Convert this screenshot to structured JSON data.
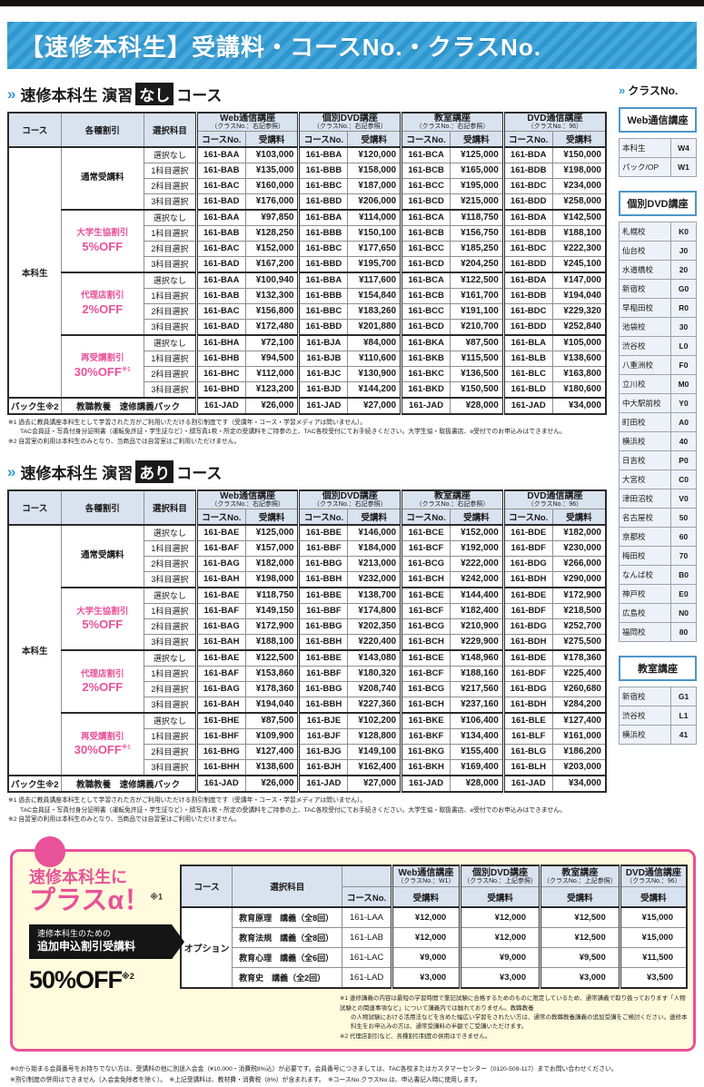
{
  "glyphs": {
    "chevron": "»"
  },
  "colors": {
    "accent_blue": "#2E9BD6",
    "brand_pink": "#E85298",
    "header_bg": "#D9E2EF",
    "plus_bg": "#FFFBDC",
    "ribbon_black": "#151515"
  },
  "page": {
    "title": "【速修本科生】受講料・コースNo.・クラスNo."
  },
  "shared": {
    "col_course": "コース",
    "col_discount": "各種割引",
    "col_subject": "選択科目",
    "col_course_no": "コースNo.",
    "col_fee": "受講料",
    "course_label": "本科生",
    "pack_label": "パック生※2",
    "pack_item": "教職教養　速修講義パック",
    "subjects": [
      "選択なし",
      "1科目選択",
      "2科目選択",
      "3科目選択"
    ],
    "groups": [
      {
        "name": "Web通信講座",
        "sub": "（クラスNo.：右記参照）"
      },
      {
        "name": "個別DVD講座",
        "sub": "（クラスNo.：右記参照）"
      },
      {
        "name": "教室講座",
        "sub": "（クラスNo.：右記参照）"
      },
      {
        "name": "DVD通信講座",
        "sub": "（クラスNo.：96）"
      }
    ],
    "footnotes": [
      "※1 過去に教員講座本科生として学習された方がご利用いただける割引制度です（受講年・コース・学習メディアは問いません）。",
      "TAC会員証・写真付身分証明書（運転免許証・学生証など）・顔写真1枚・所定の受講料をご持参の上、TAC各校受付にてお手続きください。大学生協・取扱書店、e受付でのお申込みはできません。",
      "※2 自習室の利用は本科生のみとなり、当商品では自習室はご利用いただけません。"
    ]
  },
  "tables": [
    {
      "id": "nashi",
      "heading": {
        "pre": "速修本科生 演習",
        "badge": "なし",
        "post": "コース"
      },
      "discounts": [
        {
          "label1": "通常受講料",
          "label2": "",
          "sup": "",
          "pink": false,
          "rows": [
            [
              [
                "161-BAA",
                "¥103,000"
              ],
              [
                "161-BBA",
                "¥120,000"
              ],
              [
                "161-BCA",
                "¥125,000"
              ],
              [
                "161-BDA",
                "¥150,000"
              ]
            ],
            [
              [
                "161-BAB",
                "¥135,000"
              ],
              [
                "161-BBB",
                "¥158,000"
              ],
              [
                "161-BCB",
                "¥165,000"
              ],
              [
                "161-BDB",
                "¥198,000"
              ]
            ],
            [
              [
                "161-BAC",
                "¥160,000"
              ],
              [
                "161-BBC",
                "¥187,000"
              ],
              [
                "161-BCC",
                "¥195,000"
              ],
              [
                "161-BDC",
                "¥234,000"
              ]
            ],
            [
              [
                "161-BAD",
                "¥176,000"
              ],
              [
                "161-BBD",
                "¥206,000"
              ],
              [
                "161-BCD",
                "¥215,000"
              ],
              [
                "161-BDD",
                "¥258,000"
              ]
            ]
          ]
        },
        {
          "label1": "大学生協割引",
          "label2": "5%OFF",
          "sup": "",
          "pink": true,
          "rows": [
            [
              [
                "161-BAA",
                "¥97,850"
              ],
              [
                "161-BBA",
                "¥114,000"
              ],
              [
                "161-BCA",
                "¥118,750"
              ],
              [
                "161-BDA",
                "¥142,500"
              ]
            ],
            [
              [
                "161-BAB",
                "¥128,250"
              ],
              [
                "161-BBB",
                "¥150,100"
              ],
              [
                "161-BCB",
                "¥156,750"
              ],
              [
                "161-BDB",
                "¥188,100"
              ]
            ],
            [
              [
                "161-BAC",
                "¥152,000"
              ],
              [
                "161-BBC",
                "¥177,650"
              ],
              [
                "161-BCC",
                "¥185,250"
              ],
              [
                "161-BDC",
                "¥222,300"
              ]
            ],
            [
              [
                "161-BAD",
                "¥167,200"
              ],
              [
                "161-BBD",
                "¥195,700"
              ],
              [
                "161-BCD",
                "¥204,250"
              ],
              [
                "161-BDD",
                "¥245,100"
              ]
            ]
          ]
        },
        {
          "label1": "代理店割引",
          "label2": "2%OFF",
          "sup": "",
          "pink": true,
          "rows": [
            [
              [
                "161-BAA",
                "¥100,940"
              ],
              [
                "161-BBA",
                "¥117,600"
              ],
              [
                "161-BCA",
                "¥122,500"
              ],
              [
                "161-BDA",
                "¥147,000"
              ]
            ],
            [
              [
                "161-BAB",
                "¥132,300"
              ],
              [
                "161-BBB",
                "¥154,840"
              ],
              [
                "161-BCB",
                "¥161,700"
              ],
              [
                "161-BDB",
                "¥194,040"
              ]
            ],
            [
              [
                "161-BAC",
                "¥156,800"
              ],
              [
                "161-BBC",
                "¥183,260"
              ],
              [
                "161-BCC",
                "¥191,100"
              ],
              [
                "161-BDC",
                "¥229,320"
              ]
            ],
            [
              [
                "161-BAD",
                "¥172,480"
              ],
              [
                "161-BBD",
                "¥201,880"
              ],
              [
                "161-BCD",
                "¥210,700"
              ],
              [
                "161-BDD",
                "¥252,840"
              ]
            ]
          ]
        },
        {
          "label1": "再受講割引",
          "label2": "30%OFF",
          "sup": "※1",
          "pink": true,
          "rows": [
            [
              [
                "161-BHA",
                "¥72,100"
              ],
              [
                "161-BJA",
                "¥84,000"
              ],
              [
                "161-BKA",
                "¥87,500"
              ],
              [
                "161-BLA",
                "¥105,000"
              ]
            ],
            [
              [
                "161-BHB",
                "¥94,500"
              ],
              [
                "161-BJB",
                "¥110,600"
              ],
              [
                "161-BKB",
                "¥115,500"
              ],
              [
                "161-BLB",
                "¥138,600"
              ]
            ],
            [
              [
                "161-BHC",
                "¥112,000"
              ],
              [
                "161-BJC",
                "¥130,900"
              ],
              [
                "161-BKC",
                "¥136,500"
              ],
              [
                "161-BLC",
                "¥163,800"
              ]
            ],
            [
              [
                "161-BHD",
                "¥123,200"
              ],
              [
                "161-BJD",
                "¥144,200"
              ],
              [
                "161-BKD",
                "¥150,500"
              ],
              [
                "161-BLD",
                "¥180,600"
              ]
            ]
          ]
        }
      ],
      "pack": [
        [
          "161-JAD",
          "¥26,000"
        ],
        [
          "161-JAD",
          "¥27,000"
        ],
        [
          "161-JAD",
          "¥28,000"
        ],
        [
          "161-JAD",
          "¥34,000"
        ]
      ]
    },
    {
      "id": "ari",
      "heading": {
        "pre": "速修本科生 演習",
        "badge": "あり",
        "post": "コース"
      },
      "discounts": [
        {
          "label1": "通常受講料",
          "label2": "",
          "sup": "",
          "pink": false,
          "rows": [
            [
              [
                "161-BAE",
                "¥125,000"
              ],
              [
                "161-BBE",
                "¥146,000"
              ],
              [
                "161-BCE",
                "¥152,000"
              ],
              [
                "161-BDE",
                "¥182,000"
              ]
            ],
            [
              [
                "161-BAF",
                "¥157,000"
              ],
              [
                "161-BBF",
                "¥184,000"
              ],
              [
                "161-BCF",
                "¥192,000"
              ],
              [
                "161-BDF",
                "¥230,000"
              ]
            ],
            [
              [
                "161-BAG",
                "¥182,000"
              ],
              [
                "161-BBG",
                "¥213,000"
              ],
              [
                "161-BCG",
                "¥222,000"
              ],
              [
                "161-BDG",
                "¥266,000"
              ]
            ],
            [
              [
                "161-BAH",
                "¥198,000"
              ],
              [
                "161-BBH",
                "¥232,000"
              ],
              [
                "161-BCH",
                "¥242,000"
              ],
              [
                "161-BDH",
                "¥290,000"
              ]
            ]
          ]
        },
        {
          "label1": "大学生協割引",
          "label2": "5%OFF",
          "sup": "",
          "pink": true,
          "rows": [
            [
              [
                "161-BAE",
                "¥118,750"
              ],
              [
                "161-BBE",
                "¥138,700"
              ],
              [
                "161-BCE",
                "¥144,400"
              ],
              [
                "161-BDE",
                "¥172,900"
              ]
            ],
            [
              [
                "161-BAF",
                "¥149,150"
              ],
              [
                "161-BBF",
                "¥174,800"
              ],
              [
                "161-BCF",
                "¥182,400"
              ],
              [
                "161-BDF",
                "¥218,500"
              ]
            ],
            [
              [
                "161-BAG",
                "¥172,900"
              ],
              [
                "161-BBG",
                "¥202,350"
              ],
              [
                "161-BCG",
                "¥210,900"
              ],
              [
                "161-BDG",
                "¥252,700"
              ]
            ],
            [
              [
                "161-BAH",
                "¥188,100"
              ],
              [
                "161-BBH",
                "¥220,400"
              ],
              [
                "161-BCH",
                "¥229,900"
              ],
              [
                "161-BDH",
                "¥275,500"
              ]
            ]
          ]
        },
        {
          "label1": "代理店割引",
          "label2": "2%OFF",
          "sup": "",
          "pink": true,
          "rows": [
            [
              [
                "161-BAE",
                "¥122,500"
              ],
              [
                "161-BBE",
                "¥143,080"
              ],
              [
                "161-BCE",
                "¥148,960"
              ],
              [
                "161-BDE",
                "¥178,360"
              ]
            ],
            [
              [
                "161-BAF",
                "¥153,860"
              ],
              [
                "161-BBF",
                "¥180,320"
              ],
              [
                "161-BCF",
                "¥188,160"
              ],
              [
                "161-BDF",
                "¥225,400"
              ]
            ],
            [
              [
                "161-BAG",
                "¥178,360"
              ],
              [
                "161-BBG",
                "¥208,740"
              ],
              [
                "161-BCG",
                "¥217,560"
              ],
              [
                "161-BDG",
                "¥260,680"
              ]
            ],
            [
              [
                "161-BAH",
                "¥194,040"
              ],
              [
                "161-BBH",
                "¥227,360"
              ],
              [
                "161-BCH",
                "¥237,160"
              ],
              [
                "161-BDH",
                "¥284,200"
              ]
            ]
          ]
        },
        {
          "label1": "再受講割引",
          "label2": "30%OFF",
          "sup": "※1",
          "pink": true,
          "rows": [
            [
              [
                "161-BHE",
                "¥87,500"
              ],
              [
                "161-BJE",
                "¥102,200"
              ],
              [
                "161-BKE",
                "¥106,400"
              ],
              [
                "161-BLE",
                "¥127,400"
              ]
            ],
            [
              [
                "161-BHF",
                "¥109,900"
              ],
              [
                "161-BJF",
                "¥128,800"
              ],
              [
                "161-BKF",
                "¥134,400"
              ],
              [
                "161-BLF",
                "¥161,000"
              ]
            ],
            [
              [
                "161-BHG",
                "¥127,400"
              ],
              [
                "161-BJG",
                "¥149,100"
              ],
              [
                "161-BKG",
                "¥155,400"
              ],
              [
                "161-BLG",
                "¥186,200"
              ]
            ],
            [
              [
                "161-BHH",
                "¥138,600"
              ],
              [
                "161-BJH",
                "¥162,400"
              ],
              [
                "161-BKH",
                "¥169,400"
              ],
              [
                "161-BLH",
                "¥203,000"
              ]
            ]
          ]
        }
      ],
      "pack": [
        [
          "161-JAD",
          "¥26,000"
        ],
        [
          "161-JAD",
          "¥27,000"
        ],
        [
          "161-JAD",
          "¥28,000"
        ],
        [
          "161-JAD",
          "¥34,000"
        ]
      ]
    }
  ],
  "class_no_panel": {
    "heading": "クラスNo.",
    "groups": [
      {
        "title": "Web通信講座",
        "rows": [
          [
            "本科生",
            "W4"
          ],
          [
            "パック/OP",
            "W1"
          ]
        ]
      },
      {
        "title": "個別DVD講座",
        "rows": [
          [
            "札幌校",
            "K0"
          ],
          [
            "仙台校",
            "J0"
          ],
          [
            "水道橋校",
            "20"
          ],
          [
            "新宿校",
            "G0"
          ],
          [
            "早稲田校",
            "R0"
          ],
          [
            "池袋校",
            "30"
          ],
          [
            "渋谷校",
            "L0"
          ],
          [
            "八重洲校",
            "F0"
          ],
          [
            "立川校",
            "M0"
          ],
          [
            "中大駅前校",
            "Y0"
          ],
          [
            "町田校",
            "A0"
          ],
          [
            "横浜校",
            "40"
          ],
          [
            "日吉校",
            "P0"
          ],
          [
            "大宮校",
            "C0"
          ],
          [
            "津田沼校",
            "V0"
          ],
          [
            "名古屋校",
            "50"
          ],
          [
            "京都校",
            "60"
          ],
          [
            "梅田校",
            "70"
          ],
          [
            "なんば校",
            "B0"
          ],
          [
            "神戸校",
            "E0"
          ],
          [
            "広島校",
            "N0"
          ],
          [
            "福岡校",
            "80"
          ]
        ]
      },
      {
        "title": "教室講座",
        "rows": [
          [
            "新宿校",
            "G1"
          ],
          [
            "渋谷校",
            "L1"
          ],
          [
            "横浜校",
            "41"
          ]
        ]
      }
    ]
  },
  "plus_box": {
    "catch1": "速修本科生に",
    "catch2": "プラスα！",
    "catch_sup": "※1",
    "ribbon1": "速修本科生のための",
    "ribbon2": "追加申込割引受講料",
    "off": "50%OFF",
    "off_sup": "※2",
    "table": {
      "col_course": "コース",
      "col_subject": "選択科目",
      "col_course_no": "コースNo.",
      "col_fee": "受講料",
      "course_label": "オプション",
      "groups": [
        {
          "name": "Web通信講座",
          "sub": "（クラスNo.：W1）"
        },
        {
          "name": "個別DVD講座",
          "sub": "（クラスNo.：上記参照）"
        },
        {
          "name": "教室講座",
          "sub": "（クラスNo.：上記参照）"
        },
        {
          "name": "DVD通信講座",
          "sub": "（クラスNo.：96）"
        }
      ],
      "rows": [
        {
          "subject": "教育原理　講義（全8回）",
          "no": "161-LAA",
          "fees": [
            "¥12,000",
            "¥12,000",
            "¥12,500",
            "¥15,000"
          ]
        },
        {
          "subject": "教育法規　講義（全8回）",
          "no": "161-LAB",
          "fees": [
            "¥12,000",
            "¥12,000",
            "¥12,500",
            "¥15,000"
          ]
        },
        {
          "subject": "教育心理　講義（全6回）",
          "no": "161-LAC",
          "fees": [
            "¥9,000",
            "¥9,000",
            "¥9,500",
            "¥11,500"
          ]
        },
        {
          "subject": "教育史　講義（全2回）",
          "no": "161-LAD",
          "fees": [
            "¥3,000",
            "¥3,000",
            "¥3,000",
            "¥3,500"
          ]
        }
      ]
    },
    "notes": [
      "※1 速修講義の内容は最短の学習時間で筆記試験に合格するためのものに限定しているため、通常講義で取り扱っております「人物試験との関連事項など」について講義内では触れておりません。教職教養",
      "の人物試験における活用法などを含めた幅広い学習をされたい方は、通常の教職教養講義の追加受講をご検討ください。速修本科生をお申込みの方は、通常受講料の半額でご受講いただけます。",
      "※2 代理店割引など、各種割引制度の併用はできません。"
    ]
  },
  "bottom_notes": [
    "※0から始まる会員番号をお持ちでない方は、受講料の他に別途入会金（¥10,000・消費税8%込）が必要です。会員番号につきましては、TAC各校またはカスタマーセンター（0120-509-117）までお問い合わせください。",
    "※割引制度の併用はできません（入会金免除者を除く）。　※上記受講料は、教材費・消費税（8%）が含まれます。　※コースNo.クラスNo.は、申込書記入時に使用します。"
  ]
}
